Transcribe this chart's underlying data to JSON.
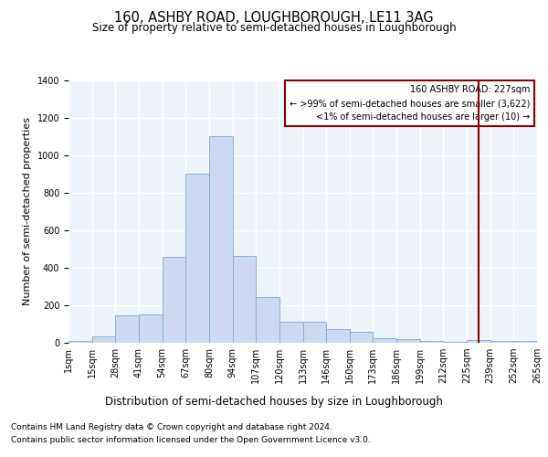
{
  "title": "160, ASHBY ROAD, LOUGHBOROUGH, LE11 3AG",
  "subtitle": "Size of property relative to semi-detached houses in Loughborough",
  "xlabel": "Distribution of semi-detached houses by size in Loughborough",
  "ylabel": "Number of semi-detached properties",
  "bar_color": "#ccd9f0",
  "bar_edge_color": "#7aaad4",
  "background_color": "#eef2fb",
  "grid_color": "#ffffff",
  "annotation_line_color": "#8b0000",
  "annotation_text_line1": "160 ASHBY ROAD: 227sqm",
  "annotation_text_line2": "← >99% of semi-detached houses are smaller (3,622)",
  "annotation_text_line3": "<1% of semi-detached houses are larger (10) →",
  "footer_line1": "Contains HM Land Registry data © Crown copyright and database right 2024.",
  "footer_line2": "Contains public sector information licensed under the Open Government Licence v3.0.",
  "bar_heights": [
    10,
    35,
    145,
    150,
    460,
    900,
    1100,
    465,
    245,
    110,
    110,
    75,
    60,
    25,
    20,
    12,
    5,
    15,
    8,
    10
  ],
  "tick_labels": [
    "1sqm",
    "15sqm",
    "28sqm",
    "41sqm",
    "54sqm",
    "67sqm",
    "80sqm",
    "94sqm",
    "107sqm",
    "120sqm",
    "133sqm",
    "146sqm",
    "160sqm",
    "173sqm",
    "186sqm",
    "199sqm",
    "212sqm",
    "225sqm",
    "239sqm",
    "252sqm",
    "265sqm"
  ],
  "ylim": [
    0,
    1400
  ],
  "yticks": [
    0,
    200,
    400,
    600,
    800,
    1000,
    1200,
    1400
  ],
  "n_bars": 20,
  "annotation_bar_index": 17,
  "title_fontsize": 10.5,
  "subtitle_fontsize": 8.5,
  "ylabel_fontsize": 8,
  "xlabel_fontsize": 8.5,
  "tick_fontsize": 7,
  "footer_fontsize": 6.5
}
